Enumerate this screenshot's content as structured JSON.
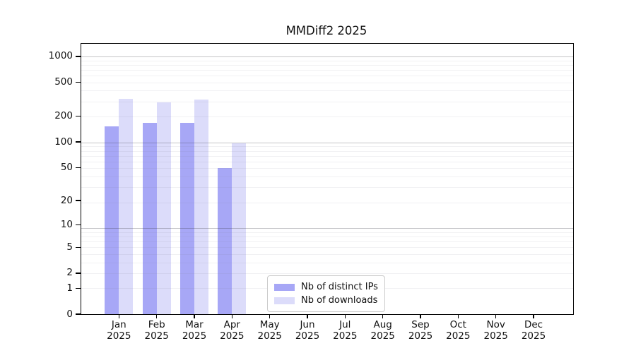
{
  "title": "MMDiff2 2025",
  "chart_data": {
    "type": "bar",
    "title": "MMDiff2 2025",
    "categories": [
      "Jan",
      "Feb",
      "Mar",
      "Apr",
      "May",
      "Jun",
      "Jul",
      "Aug",
      "Sep",
      "Oct",
      "Nov",
      "Dec"
    ],
    "year_label": "2025",
    "series": [
      {
        "name": "Nb of distinct IPs",
        "color": "#a7a7f6",
        "values": [
          152,
          168,
          168,
          49,
          0,
          0,
          0,
          0,
          0,
          0,
          0,
          0
        ]
      },
      {
        "name": "Nb of downloads",
        "color": "#dcdcfa",
        "values": [
          322,
          289,
          312,
          97,
          0,
          0,
          0,
          0,
          0,
          0,
          0,
          0
        ]
      }
    ],
    "y_axis": {
      "scale": "log(1+v)",
      "ticks": [
        0,
        1,
        2,
        5,
        10,
        20,
        50,
        100,
        200,
        500,
        1000
      ],
      "ylim": [
        0,
        1400
      ]
    },
    "xlabel": "",
    "ylabel": "",
    "grid": "horizontal log minor + major gridlines, drawn over bars",
    "legend": {
      "position": "lower center",
      "entries": [
        "Nb of distinct IPs",
        "Nb of downloads"
      ]
    }
  }
}
